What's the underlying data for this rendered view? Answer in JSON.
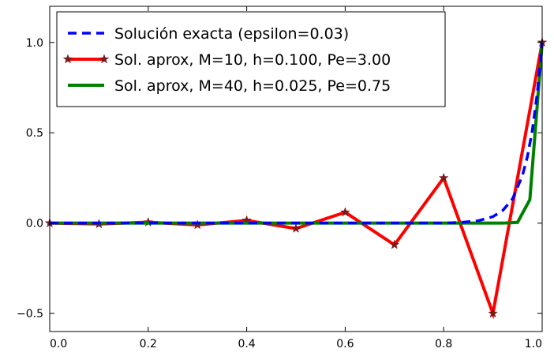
{
  "chart_data": {
    "type": "line",
    "xlim": [
      0.0,
      1.0
    ],
    "ylim": [
      -0.6,
      1.2
    ],
    "xticks": [
      0.0,
      0.2,
      0.4,
      0.6,
      0.8,
      1.0
    ],
    "yticks": [
      -0.5,
      0.0,
      0.5,
      1.0
    ],
    "xtick_labels": [
      "0.0",
      "0.2",
      "0.4",
      "0.6",
      "0.8",
      "1.0"
    ],
    "ytick_labels": [
      "−0.5",
      "0.0",
      "0.5",
      "1.0"
    ],
    "grid": false,
    "legend_position": "top-left",
    "series": [
      {
        "name": "Solución exacta (epsilon=0.03)",
        "color": "#0000ff",
        "style": "dashed",
        "marker": "none",
        "x": [
          0.0,
          0.1,
          0.2,
          0.3,
          0.4,
          0.5,
          0.6,
          0.7,
          0.75,
          0.8,
          0.84,
          0.87,
          0.9,
          0.92,
          0.94,
          0.96,
          0.97,
          0.98,
          0.99,
          1.0
        ],
        "y": [
          0.0,
          0.0,
          0.0,
          0.0,
          0.0,
          0.0,
          0.0,
          0.0,
          0.0,
          0.0,
          0.005,
          0.013,
          0.036,
          0.07,
          0.135,
          0.264,
          0.368,
          0.513,
          0.717,
          1.0
        ]
      },
      {
        "name": "Sol. aprox, M=10, h=0.100, Pe=3.00",
        "color": "#ff0000",
        "style": "solid",
        "marker": "star",
        "marker_color": "#7a1a1a",
        "x": [
          0.0,
          0.1,
          0.2,
          0.3,
          0.4,
          0.5,
          0.6,
          0.7,
          0.8,
          0.9,
          1.0
        ],
        "y": [
          0.0,
          -0.005,
          0.005,
          -0.01,
          0.015,
          -0.03,
          0.06,
          -0.12,
          0.25,
          -0.5,
          1.0
        ]
      },
      {
        "name": "Sol. aprox, M=40, h=0.025, Pe=0.75",
        "color": "#008000",
        "style": "solid",
        "marker": "none",
        "x": [
          0.0,
          0.1,
          0.2,
          0.3,
          0.4,
          0.5,
          0.6,
          0.7,
          0.8,
          0.9,
          0.925,
          0.95,
          0.975,
          1.0
        ],
        "y": [
          0.0,
          0.0,
          0.0,
          0.0,
          0.0,
          0.0,
          0.0,
          0.0,
          0.0,
          0.0,
          0.0006,
          0.004,
          0.13,
          1.0
        ]
      }
    ]
  }
}
